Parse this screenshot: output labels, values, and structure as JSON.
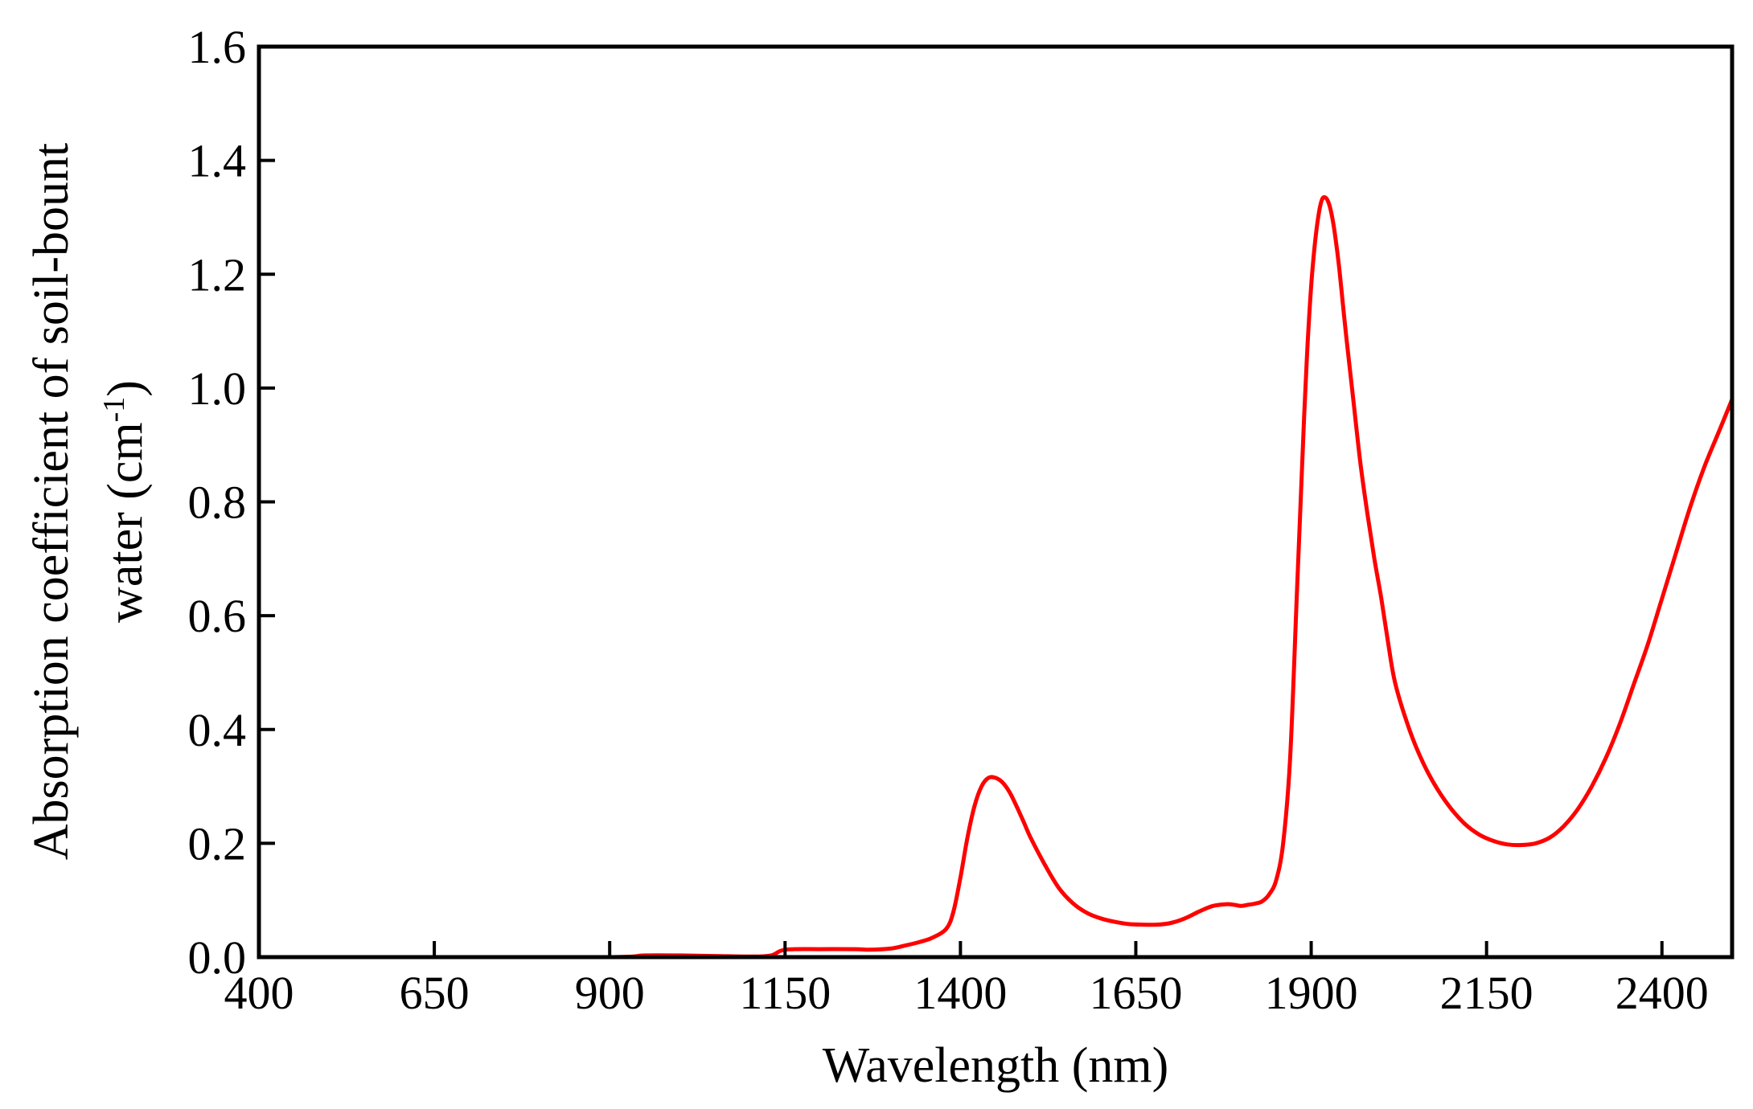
{
  "chart_data": {
    "type": "line",
    "title": "",
    "xlabel": "Wavelength (nm)",
    "ylabel_line1": "Absorption coefficient of soil-bount",
    "ylabel_line2_prefix": "water (cm",
    "ylabel_line2_sup": "-1",
    "ylabel_line2_suffix": ")",
    "xlim": [
      400,
      2500
    ],
    "ylim": [
      0,
      1.6
    ],
    "xticks": [
      400,
      650,
      900,
      1150,
      1400,
      1650,
      1900,
      2150,
      2400
    ],
    "xtick_labels": [
      "400",
      "650",
      "900",
      "1150",
      "1400",
      "1650",
      "1900",
      "2150",
      "2400"
    ],
    "yticks": [
      0,
      0.2,
      0.4,
      0.6,
      0.8,
      1.0,
      1.2,
      1.4,
      1.6
    ],
    "ytick_labels": [
      "0.0",
      "0.2",
      "0.4",
      "0.6",
      "0.8",
      "1.0",
      "1.2",
      "1.4",
      "1.6"
    ],
    "grid": false,
    "series": [
      {
        "color": "#ff0000",
        "x": [
          400,
          650,
          900,
          950,
          1000,
          1050,
          1100,
          1130,
          1150,
          1200,
          1250,
          1270,
          1300,
          1320,
          1340,
          1360,
          1380,
          1390,
          1400,
          1410,
          1420,
          1430,
          1440,
          1450,
          1460,
          1470,
          1480,
          1490,
          1500,
          1520,
          1540,
          1560,
          1580,
          1600,
          1620,
          1640,
          1660,
          1680,
          1700,
          1720,
          1740,
          1760,
          1780,
          1790,
          1800,
          1810,
          1820,
          1830,
          1840,
          1850,
          1860,
          1870,
          1880,
          1890,
          1895,
          1900,
          1905,
          1910,
          1915,
          1920,
          1925,
          1930,
          1935,
          1940,
          1945,
          1950,
          1960,
          1970,
          1980,
          1990,
          2000,
          2010,
          2020,
          2040,
          2060,
          2080,
          2100,
          2120,
          2140,
          2160,
          2180,
          2200,
          2220,
          2240,
          2260,
          2280,
          2300,
          2320,
          2340,
          2360,
          2380,
          2400,
          2420,
          2440,
          2460,
          2480,
          2500
        ],
        "y": [
          0.0,
          0.0,
          0.0,
          0.003,
          0.003,
          0.002,
          0.001,
          0.003,
          0.013,
          0.014,
          0.014,
          0.013,
          0.015,
          0.02,
          0.026,
          0.034,
          0.05,
          0.08,
          0.14,
          0.21,
          0.265,
          0.3,
          0.315,
          0.315,
          0.307,
          0.29,
          0.265,
          0.238,
          0.21,
          0.163,
          0.122,
          0.095,
          0.078,
          0.068,
          0.062,
          0.058,
          0.057,
          0.057,
          0.06,
          0.068,
          0.08,
          0.09,
          0.093,
          0.092,
          0.09,
          0.092,
          0.094,
          0.098,
          0.11,
          0.135,
          0.2,
          0.35,
          0.65,
          0.95,
          1.08,
          1.18,
          1.25,
          1.3,
          1.33,
          1.335,
          1.325,
          1.3,
          1.26,
          1.21,
          1.15,
          1.09,
          0.98,
          0.87,
          0.78,
          0.7,
          0.63,
          0.55,
          0.48,
          0.4,
          0.34,
          0.295,
          0.26,
          0.233,
          0.215,
          0.204,
          0.198,
          0.197,
          0.2,
          0.21,
          0.23,
          0.26,
          0.3,
          0.35,
          0.41,
          0.48,
          0.55,
          0.63,
          0.71,
          0.79,
          0.86,
          0.92,
          0.98
        ]
      }
    ]
  }
}
